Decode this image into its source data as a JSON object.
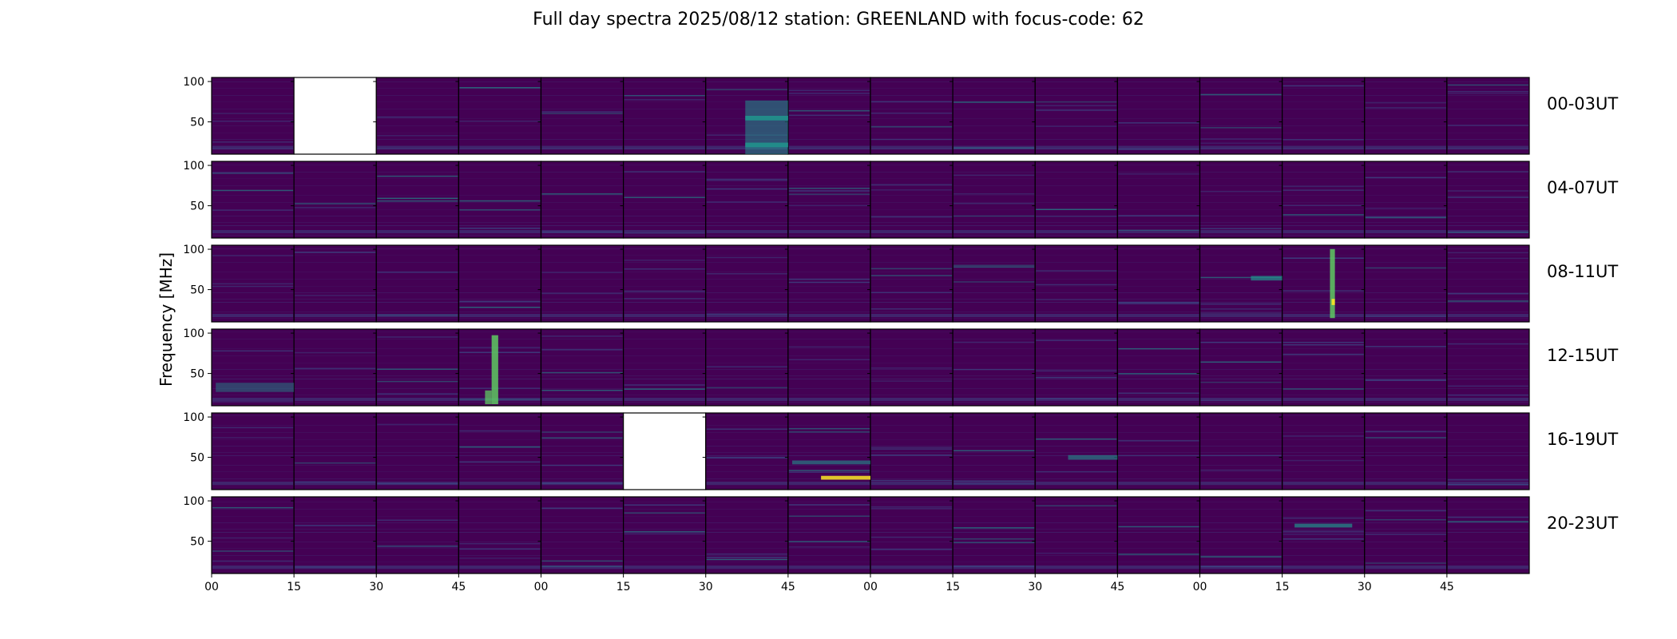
{
  "chart_data": {
    "type": "heatmap",
    "title": "Full day spectra 2025/08/12 station: GREENLAND with focus-code: 62",
    "ylabel": "Frequency [MHz]",
    "ytick_labels": [
      "100",
      "50"
    ],
    "ylim": [
      10,
      105
    ],
    "xtick_labels": [
      "00",
      "15",
      "30",
      "45",
      "00",
      "15",
      "30",
      "45",
      "00",
      "15",
      "30",
      "45",
      "00",
      "15",
      "30",
      "45"
    ],
    "rows": [
      {
        "label": "00-03UT",
        "missing_panels": [
          1
        ]
      },
      {
        "label": "04-07UT",
        "missing_panels": []
      },
      {
        "label": "08-11UT",
        "missing_panels": []
      },
      {
        "label": "12-15UT",
        "missing_panels": []
      },
      {
        "label": "16-19UT",
        "missing_panels": [
          5
        ]
      },
      {
        "label": "20-23UT",
        "missing_panels": []
      }
    ],
    "panels_per_row": 16,
    "colormap": "viridis",
    "colors": {
      "background": "#440154",
      "mid": "#3b528b",
      "teal": "#21918c",
      "green": "#5ec962",
      "yellow": "#fde725"
    }
  }
}
